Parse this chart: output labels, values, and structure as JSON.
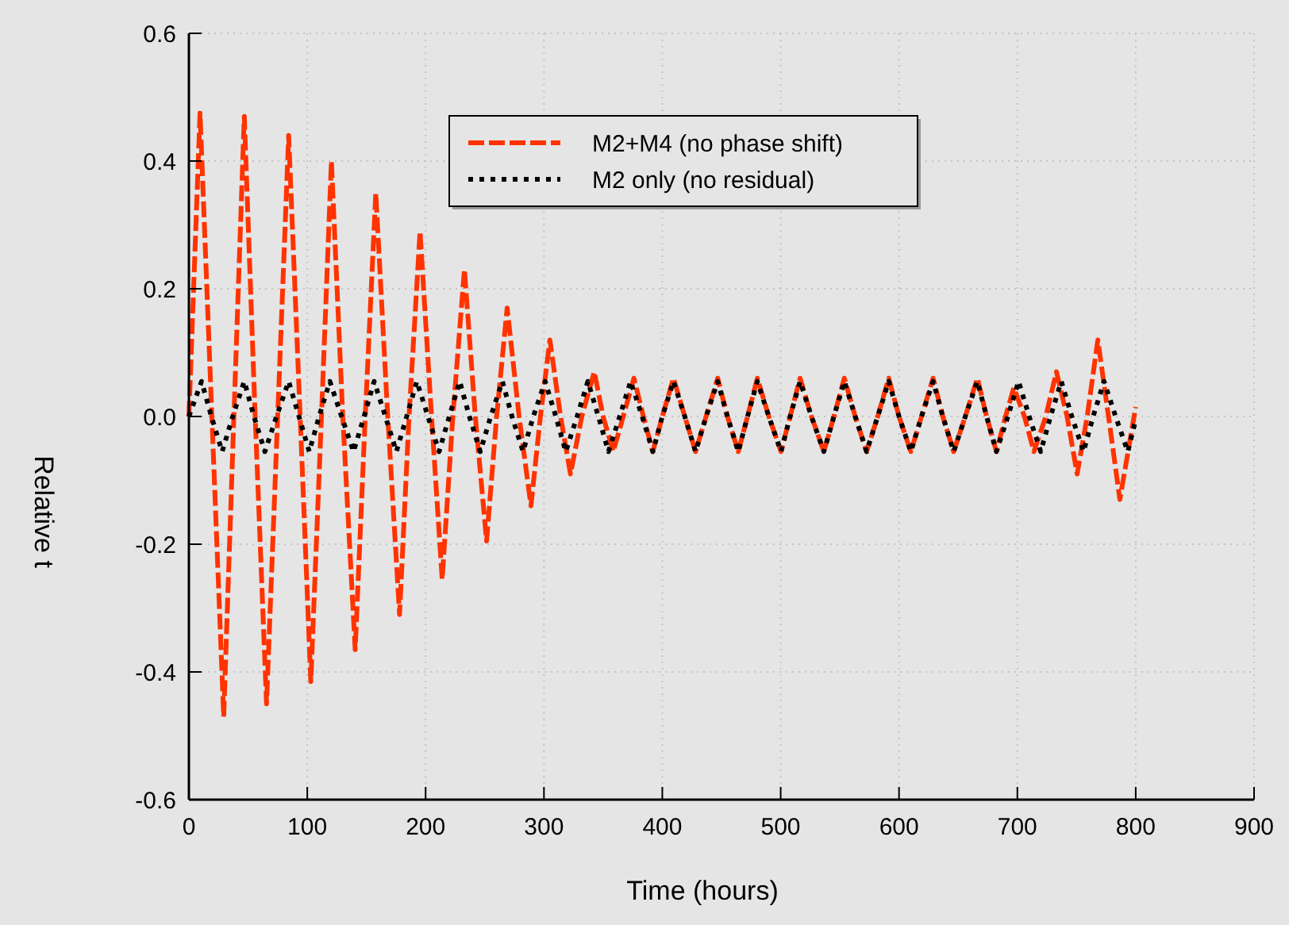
{
  "chart_data": {
    "type": "line",
    "xlabel": "Time (hours)",
    "ylabel": "Relative t",
    "xlim": [
      0,
      900
    ],
    "xticks": [
      0,
      100,
      200,
      300,
      400,
      500,
      600,
      700,
      800,
      900
    ],
    "ylim": [
      -0.6,
      0.6
    ],
    "yticks": [
      -0.6,
      -0.4,
      -0.2,
      {
        "value": 0,
        "label": "0.0"
      },
      0.2,
      0.4,
      0.6
    ],
    "grid": true,
    "legend": "top",
    "marker": "none",
    "series": [
      {
        "name": "M2+M4 (no phase shift)",
        "color": "#ff3300",
        "line_style": "dashed",
        "x": [
          0,
          9.4,
          19.4,
          29.4,
          38,
          46.8,
          56,
          65.6,
          75,
          84.3,
          94,
          103,
          112,
          120.4,
          130,
          140.5,
          149,
          157.9,
          168,
          178,
          186,
          195.3,
          205,
          214,
          223,
          232.8,
          242,
          251.5,
          260,
          268.9,
          279,
          289,
          297,
          305,
          314,
          322.4,
          332,
          342.5,
          350,
          358.5,
          367,
          376,
          384,
          392,
          400,
          409.4,
          419,
          428.1,
          437,
          446.8,
          455,
          464.2,
          472,
          480.3,
          490,
          500.3,
          508,
          516.4,
          526,
          536.5,
          545,
          553.8,
          563,
          572.6,
          582,
          591.3,
          600,
          610,
          619,
          628.8,
          637,
          646.2,
          656,
          666.2,
          674,
          682.3,
          690,
          697,
          706,
          714,
          724,
          733,
          742,
          750.5,
          759,
          768,
          777,
          786.6,
          800
        ],
        "values": [
          0,
          0.475,
          0,
          -0.47,
          0,
          0.47,
          0,
          -0.45,
          0,
          0.44,
          0,
          -0.415,
          0,
          0.4,
          0,
          -0.365,
          0,
          0.35,
          0,
          -0.31,
          0,
          0.29,
          0,
          -0.255,
          0,
          0.23,
          0,
          -0.195,
          0,
          0.17,
          0,
          -0.14,
          0,
          0.12,
          0,
          -0.09,
          0,
          0.07,
          0,
          -0.055,
          0,
          0.06,
          0,
          -0.055,
          0,
          0.06,
          0,
          -0.055,
          0,
          0.06,
          0,
          -0.055,
          0,
          0.06,
          0,
          -0.055,
          0,
          0.06,
          0,
          -0.055,
          0,
          0.06,
          0,
          -0.055,
          0,
          0.06,
          0,
          -0.055,
          0,
          0.06,
          0,
          -0.055,
          0,
          0.06,
          0,
          -0.055,
          0,
          0.045,
          0,
          -0.055,
          0,
          0.07,
          0,
          -0.09,
          0,
          0.12,
          0,
          -0.13,
          0.015
        ]
      },
      {
        "name": "M2 only (no residual)",
        "color": "#000000",
        "line_style": "dotted",
        "x": [
          0,
          10.7,
          19,
          28.1,
          37,
          46.8,
          55,
          64.2,
          74,
          84.3,
          93,
          101.7,
          110,
          119.1,
          129,
          139.1,
          148,
          156.5,
          166,
          175.3,
          184,
          192.6,
          202,
          211.4,
          220,
          228.8,
          237,
          246.2,
          255,
          264.9,
          273,
          282.3,
          291,
          301,
          310,
          318.4,
          328,
          337.1,
          346,
          354.5,
          364,
          373.2,
          383,
          392,
          400,
          409.4,
          419,
          428.1,
          437,
          446.8,
          455,
          464.2,
          472,
          480.3,
          490,
          500.3,
          508,
          516.4,
          526,
          536.5,
          545,
          553.8,
          563,
          572.6,
          582,
          591.3,
          600,
          610,
          619,
          628.8,
          637,
          646.2,
          656,
          666.2,
          674,
          682.3,
          692,
          701,
          710,
          719.7,
          728,
          737.1,
          746,
          755.9,
          764,
          773.2,
          783,
          793.3,
          800
        ],
        "values": [
          0,
          0.055,
          0,
          -0.055,
          0,
          0.055,
          0,
          -0.055,
          0,
          0.055,
          0,
          -0.055,
          0,
          0.055,
          0,
          -0.055,
          0,
          0.055,
          0,
          -0.055,
          0,
          0.055,
          0,
          -0.055,
          0,
          0.055,
          0,
          -0.055,
          0,
          0.055,
          0,
          -0.055,
          0,
          0.055,
          0,
          -0.055,
          0,
          0.055,
          0,
          -0.055,
          0,
          0.055,
          0,
          -0.055,
          0,
          0.055,
          0,
          -0.055,
          0,
          0.055,
          0,
          -0.055,
          0,
          0.055,
          0,
          -0.055,
          0,
          0.055,
          0,
          -0.055,
          0,
          0.055,
          0,
          -0.055,
          0,
          0.055,
          0,
          -0.055,
          0,
          0.055,
          0,
          -0.055,
          0,
          0.055,
          0,
          -0.055,
          0,
          0.055,
          0,
          -0.055,
          0,
          0.055,
          0,
          -0.055,
          0,
          0.055,
          0,
          -0.055,
          -0.005
        ]
      }
    ]
  }
}
